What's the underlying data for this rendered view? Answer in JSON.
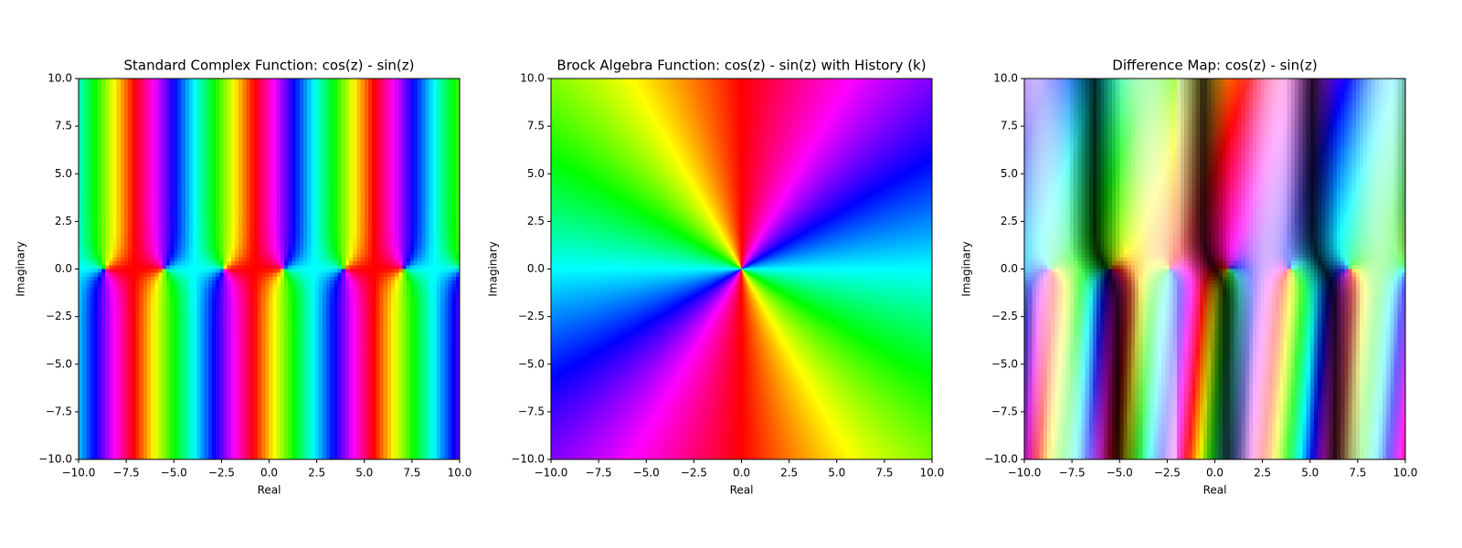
{
  "chart_data": [
    {
      "type": "image",
      "title": "Standard Complex Function: cos(z) - sin(z)",
      "xlabel": "Real",
      "ylabel": "Imaginary",
      "xlim": [
        -10,
        10
      ],
      "ylim": [
        -10,
        10
      ],
      "xticks": [
        {
          "value": -10,
          "label": "−10.0"
        },
        {
          "value": -7.5,
          "label": "−7.5"
        },
        {
          "value": -5,
          "label": "−5.0"
        },
        {
          "value": -2.5,
          "label": "−2.5"
        },
        {
          "value": 0,
          "label": "0.0"
        },
        2.5,
        {
          "value": 5,
          "label": "5.0"
        },
        7.5,
        {
          "value": 10,
          "label": "10.0"
        }
      ],
      "yticks": [
        {
          "value": -10,
          "label": "−10.0"
        },
        {
          "value": -7.5,
          "label": "−7.5"
        },
        {
          "value": -5,
          "label": "−5.0"
        },
        {
          "value": -2.5,
          "label": "−2.5"
        },
        {
          "value": 0,
          "label": "0.0"
        },
        2.5,
        {
          "value": 5,
          "label": "5.0"
        },
        7.5,
        {
          "value": 10,
          "label": "10.0"
        }
      ]
    },
    {
      "type": "image",
      "title": "Brock Algebra Function: cos(z) - sin(z) with History (k)",
      "xlabel": "Real",
      "ylabel": "Imaginary",
      "xlim": [
        -10,
        10
      ],
      "ylim": [
        -10,
        10
      ],
      "xticks": [
        {
          "value": -10,
          "label": "−10.0"
        },
        {
          "value": -7.5,
          "label": "−7.5"
        },
        {
          "value": -5,
          "label": "−5.0"
        },
        {
          "value": -2.5,
          "label": "−2.5"
        },
        {
          "value": 0,
          "label": "0.0"
        },
        2.5,
        {
          "value": 5,
          "label": "5.0"
        },
        7.5,
        {
          "value": 10,
          "label": "10.0"
        }
      ],
      "yticks": [
        {
          "value": -10,
          "label": "−10.0"
        },
        {
          "value": -7.5,
          "label": "−7.5"
        },
        {
          "value": -5,
          "label": "−5.0"
        },
        {
          "value": -2.5,
          "label": "−2.5"
        },
        {
          "value": 0,
          "label": "0.0"
        },
        2.5,
        {
          "value": 5,
          "label": "5.0"
        },
        7.5,
        {
          "value": 10,
          "label": "10.0"
        }
      ]
    },
    {
      "type": "image",
      "title": "Difference Map: cos(z) - sin(z)",
      "xlabel": "Real",
      "ylabel": "Imaginary",
      "xlim": [
        -10,
        10
      ],
      "ylim": [
        -10,
        10
      ],
      "xticks": [
        {
          "value": -10,
          "label": "−10.0"
        },
        {
          "value": -7.5,
          "label": "−7.5"
        },
        {
          "value": -5,
          "label": "−5.0"
        },
        {
          "value": -2.5,
          "label": "−2.5"
        },
        {
          "value": 0,
          "label": "0.0"
        },
        2.5,
        {
          "value": 5,
          "label": "5.0"
        },
        7.5,
        {
          "value": 10,
          "label": "10.0"
        }
      ],
      "yticks": [
        {
          "value": -10,
          "label": "−10.0"
        },
        {
          "value": -7.5,
          "label": "−7.5"
        },
        {
          "value": -5,
          "label": "−5.0"
        },
        {
          "value": -2.5,
          "label": "−2.5"
        },
        {
          "value": 0,
          "label": "0.0"
        },
        2.5,
        {
          "value": 5,
          "label": "5.0"
        },
        7.5,
        {
          "value": 10,
          "label": "10.0"
        }
      ]
    }
  ]
}
